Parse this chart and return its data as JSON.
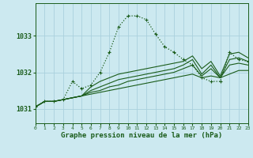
{
  "title": "Graphe pression niveau de la mer (hPa)",
  "background_color": "#cce9f0",
  "grid_color": "#aad0dd",
  "line_color": "#1a5c1a",
  "xlim": [
    0,
    23
  ],
  "ylim": [
    1030.6,
    1033.9
  ],
  "xticks": [
    0,
    1,
    2,
    3,
    4,
    5,
    6,
    7,
    8,
    9,
    10,
    11,
    12,
    13,
    14,
    15,
    16,
    17,
    18,
    19,
    20,
    21,
    22,
    23
  ],
  "yticks": [
    1031,
    1032,
    1033
  ],
  "dotted_x": [
    0,
    1,
    2,
    3,
    4,
    5,
    6,
    7,
    8,
    9,
    10,
    11,
    12,
    13,
    14,
    15,
    16,
    17,
    18,
    19,
    20,
    21,
    22,
    23
  ],
  "dotted_y": [
    1031.05,
    1031.2,
    1031.2,
    1031.25,
    1031.75,
    1031.55,
    1031.65,
    1032.0,
    1032.55,
    1033.25,
    1033.55,
    1033.55,
    1033.45,
    1033.05,
    1032.7,
    1032.55,
    1032.35,
    1032.2,
    1031.85,
    1031.75,
    1031.75,
    1032.55,
    1032.35,
    1032.3
  ],
  "solid_lines": [
    [
      1031.05,
      1031.2,
      1031.2,
      1031.25,
      1031.3,
      1031.35,
      1031.4,
      1031.45,
      1031.5,
      1031.55,
      1031.6,
      1031.65,
      1031.7,
      1031.75,
      1031.8,
      1031.85,
      1031.9,
      1031.95,
      1031.85,
      1031.9,
      1031.85,
      1031.95,
      1032.05,
      1032.05
    ],
    [
      1031.05,
      1031.2,
      1031.2,
      1031.25,
      1031.3,
      1031.35,
      1031.45,
      1031.5,
      1031.6,
      1031.65,
      1031.75,
      1031.8,
      1031.85,
      1031.9,
      1031.95,
      1032.0,
      1032.1,
      1032.2,
      1031.9,
      1032.1,
      1031.85,
      1032.2,
      1032.25,
      1032.2
    ],
    [
      1031.05,
      1031.2,
      1031.2,
      1031.25,
      1031.3,
      1031.35,
      1031.5,
      1031.6,
      1031.7,
      1031.8,
      1031.85,
      1031.9,
      1031.95,
      1032.0,
      1032.05,
      1032.1,
      1032.2,
      1032.35,
      1031.95,
      1032.2,
      1031.85,
      1032.35,
      1032.4,
      1032.3
    ],
    [
      1031.05,
      1031.2,
      1031.2,
      1031.25,
      1031.3,
      1031.35,
      1031.6,
      1031.75,
      1031.85,
      1031.95,
      1032.0,
      1032.05,
      1032.1,
      1032.15,
      1032.2,
      1032.25,
      1032.3,
      1032.45,
      1032.1,
      1032.3,
      1031.9,
      1032.5,
      1032.55,
      1032.4
    ]
  ]
}
